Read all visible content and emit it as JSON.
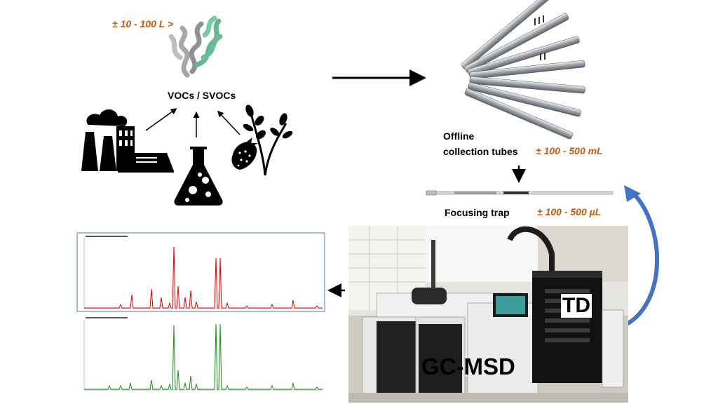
{
  "labels": {
    "air_volume": "± 10 - 100 L >",
    "vocs": "VOCs / SVOCs",
    "offline_line1": "Offline",
    "offline_line2": "collection tubes",
    "tube_volume": "± 100 - 500 mL",
    "focusing_trap": "Focusing trap",
    "trap_volume": "± 100 - 500 µL",
    "td": "TD",
    "gcmsd": "GC-MSD"
  },
  "colors": {
    "orange_text": "#c55a11",
    "curved_arrow": "#4472c4",
    "chromatogram_red": "#e00000",
    "chromatogram_green": "#1a8a1a",
    "chromatogram_frame": "#4a7ebb"
  },
  "icons": [
    "smoke-icon",
    "factory-icon",
    "flask-icon",
    "strawberry-icon",
    "plant-icon"
  ]
}
